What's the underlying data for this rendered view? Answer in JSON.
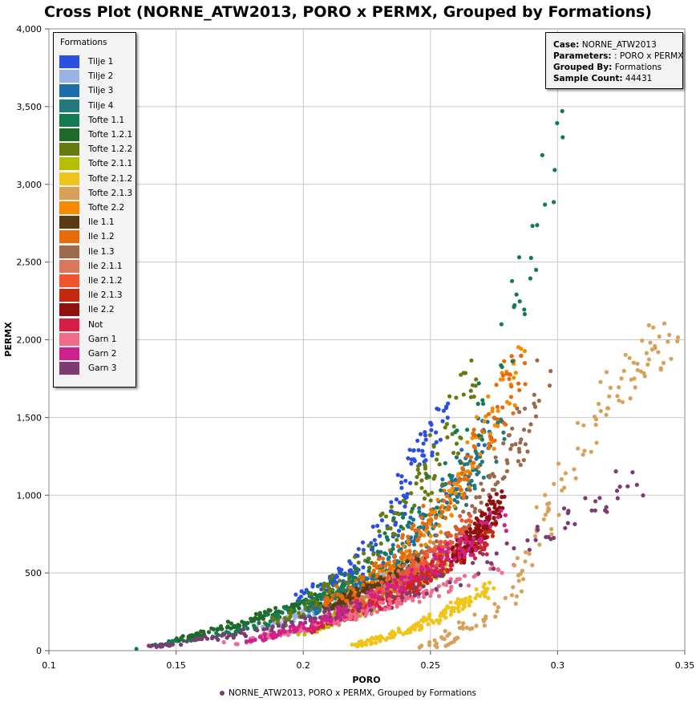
{
  "chart_data": {
    "type": "scatter",
    "title": "Cross Plot (NORNE_ATW2013, PORO x PERMX, Grouped by Formations)",
    "xlabel": "PORO",
    "ylabel": "PERMX",
    "xlim": [
      0.1,
      0.35
    ],
    "ylim": [
      0,
      4000
    ],
    "x_ticks": [
      "0.1",
      "0.15",
      "0.2",
      "0.25",
      "0.3",
      "0.35"
    ],
    "y_ticks": [
      "0",
      "500",
      "1,000",
      "1,500",
      "2,000",
      "2,500",
      "3,000",
      "3,500",
      "4,000"
    ],
    "grid": true,
    "legend_position": "top-left",
    "legend_title": "Formations",
    "series": [
      {
        "name": "Tilje 1",
        "color": "#2b4fe0",
        "curve": [
          [
            0.2,
            330
          ],
          [
            0.22,
            520
          ],
          [
            0.235,
            830
          ],
          [
            0.245,
            1280
          ],
          [
            0.255,
            1520
          ]
        ],
        "spread": 0.004
      },
      {
        "name": "Tilje 2",
        "color": "#9bb3e2",
        "curve": [
          [
            0.185,
            150
          ],
          [
            0.21,
            300
          ],
          [
            0.23,
            440
          ],
          [
            0.245,
            560
          ]
        ],
        "spread": 0.004
      },
      {
        "name": "Tilje 3",
        "color": "#1d6ea8",
        "curve": [
          [
            0.2,
            230
          ],
          [
            0.23,
            520
          ],
          [
            0.255,
            960
          ],
          [
            0.275,
            1500
          ]
        ],
        "spread": 0.004
      },
      {
        "name": "Tilje 4",
        "color": "#23797a",
        "curve": [
          [
            0.21,
            270
          ],
          [
            0.24,
            600
          ],
          [
            0.26,
            1000
          ],
          [
            0.278,
            1420
          ]
        ],
        "spread": 0.004
      },
      {
        "name": "Tofte 1.1",
        "color": "#137b52",
        "curve": [
          [
            0.135,
            10
          ],
          [
            0.18,
            140
          ],
          [
            0.22,
            470
          ],
          [
            0.25,
            960
          ],
          [
            0.27,
            1550
          ],
          [
            0.285,
            2300
          ],
          [
            0.297,
            3100
          ],
          [
            0.305,
            3950
          ]
        ],
        "spread": 0.005
      },
      {
        "name": "Tofte 1.2.1",
        "color": "#1f6a2a",
        "curve": [
          [
            0.15,
            60
          ],
          [
            0.18,
            200
          ],
          [
            0.2,
            300
          ],
          [
            0.215,
            380
          ]
        ],
        "spread": 0.004
      },
      {
        "name": "Tofte 1.2.2",
        "color": "#657b10",
        "curve": [
          [
            0.185,
            140
          ],
          [
            0.215,
            430
          ],
          [
            0.24,
            900
          ],
          [
            0.26,
            1450
          ],
          [
            0.268,
            1800
          ]
        ],
        "spread": 0.005
      },
      {
        "name": "Tofte 2.1.1",
        "color": "#b6be00",
        "curve": [
          [
            0.2,
            100
          ],
          [
            0.22,
            250
          ],
          [
            0.24,
            420
          ],
          [
            0.255,
            560
          ]
        ],
        "spread": 0.004
      },
      {
        "name": "Tofte 2.1.2",
        "color": "#f0c419",
        "curve": [
          [
            0.22,
            30
          ],
          [
            0.245,
            150
          ],
          [
            0.265,
            320
          ],
          [
            0.275,
            420
          ]
        ],
        "spread": 0.004
      },
      {
        "name": "Tofte 2.1.3",
        "color": "#d9a05a",
        "curve": [
          [
            0.25,
            20
          ],
          [
            0.28,
            300
          ],
          [
            0.3,
            1050
          ],
          [
            0.32,
            1650
          ],
          [
            0.345,
            2020
          ]
        ],
        "spread": 0.005
      },
      {
        "name": "Tofte 2.2",
        "color": "#f78b00",
        "curve": [
          [
            0.21,
            250
          ],
          [
            0.235,
            500
          ],
          [
            0.255,
            850
          ],
          [
            0.275,
            1500
          ],
          [
            0.285,
            1870
          ]
        ],
        "spread": 0.004
      },
      {
        "name": "Ile 1.1",
        "color": "#5c3a14",
        "curve": [
          [
            0.21,
            280
          ],
          [
            0.23,
            420
          ],
          [
            0.245,
            560
          ]
        ],
        "spread": 0.003
      },
      {
        "name": "Ile 1.2",
        "color": "#e86a08",
        "curve": [
          [
            0.21,
            300
          ],
          [
            0.24,
            650
          ],
          [
            0.26,
            1050
          ],
          [
            0.28,
            1650
          ],
          [
            0.287,
            1900
          ]
        ],
        "spread": 0.004
      },
      {
        "name": "Ile 1.3",
        "color": "#9a6a4a",
        "curve": [
          [
            0.23,
            350
          ],
          [
            0.26,
            750
          ],
          [
            0.28,
            1180
          ],
          [
            0.29,
            1500
          ],
          [
            0.295,
            1720
          ]
        ],
        "spread": 0.004
      },
      {
        "name": "Ile 2.1.1",
        "color": "#d9775c",
        "curve": [
          [
            0.21,
            200
          ],
          [
            0.235,
            420
          ],
          [
            0.255,
            650
          ]
        ],
        "spread": 0.004
      },
      {
        "name": "Ile 2.1.2",
        "color": "#f2552e",
        "curve": [
          [
            0.22,
            280
          ],
          [
            0.245,
            520
          ],
          [
            0.265,
            820
          ]
        ],
        "spread": 0.004
      },
      {
        "name": "Ile 2.1.3",
        "color": "#c42a12",
        "curve": [
          [
            0.235,
            320
          ],
          [
            0.26,
            600
          ],
          [
            0.275,
            800
          ]
        ],
        "spread": 0.003
      },
      {
        "name": "Ile 2.2",
        "color": "#900f0f",
        "curve": [
          [
            0.26,
            600
          ],
          [
            0.27,
            780
          ],
          [
            0.277,
            950
          ]
        ],
        "spread": 0.003
      },
      {
        "name": "Not",
        "color": "#d81e45",
        "curve": [
          [
            0.2,
            120
          ],
          [
            0.23,
            300
          ],
          [
            0.255,
            560
          ],
          [
            0.27,
            700
          ]
        ],
        "spread": 0.005
      },
      {
        "name": "Garn 1",
        "color": "#ee6b8c",
        "curve": [
          [
            0.17,
            40
          ],
          [
            0.2,
            140
          ],
          [
            0.23,
            270
          ],
          [
            0.26,
            440
          ],
          [
            0.28,
            560
          ]
        ],
        "spread": 0.005
      },
      {
        "name": "Garn 2",
        "color": "#d0208e",
        "curve": [
          [
            0.18,
            60
          ],
          [
            0.21,
            200
          ],
          [
            0.24,
            450
          ],
          [
            0.26,
            650
          ],
          [
            0.28,
            850
          ]
        ],
        "spread": 0.005
      },
      {
        "name": "Garn 3",
        "color": "#7e3a72",
        "curve": [
          [
            0.14,
            20
          ],
          [
            0.18,
            120
          ],
          [
            0.22,
            270
          ],
          [
            0.26,
            470
          ],
          [
            0.3,
            800
          ],
          [
            0.33,
            1100
          ]
        ],
        "spread": 0.006
      }
    ]
  },
  "info": {
    "case_label": "Case:",
    "case_value": "NORNE_ATW2013",
    "parameters_label": "Parameters:",
    "parameters_value": ": PORO x PERMX",
    "grouped_label": "Grouped By:",
    "grouped_value": "Formations",
    "count_label": "Sample Count:",
    "count_value": "44431"
  },
  "footer_label": "NORNE_ATW2013, PORO x PERMX, Grouped by Formations"
}
